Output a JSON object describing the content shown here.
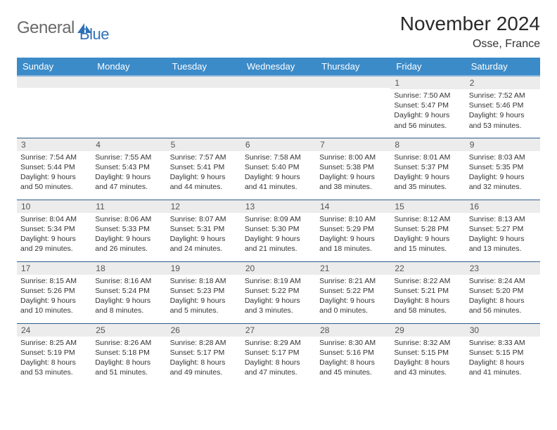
{
  "brand": {
    "word1": "General",
    "word2": "Blue"
  },
  "title": "November 2024",
  "location": "Osse, France",
  "colors": {
    "header_bg": "#3b8bc9",
    "header_underline": "#8fb9db",
    "row_border": "#2f5d8a",
    "daynum_bg": "#ececec",
    "text": "#333333",
    "logo_gray": "#6a6a6a",
    "logo_blue": "#2f71b8",
    "background": "#ffffff"
  },
  "typography": {
    "title_fontsize": 28,
    "location_fontsize": 16,
    "header_fontsize": 13,
    "daynum_fontsize": 12,
    "body_fontsize": 10.5
  },
  "day_headers": [
    "Sunday",
    "Monday",
    "Tuesday",
    "Wednesday",
    "Thursday",
    "Friday",
    "Saturday"
  ],
  "weeks": [
    [
      {
        "n": "",
        "sr": "",
        "ss": "",
        "dl": ""
      },
      {
        "n": "",
        "sr": "",
        "ss": "",
        "dl": ""
      },
      {
        "n": "",
        "sr": "",
        "ss": "",
        "dl": ""
      },
      {
        "n": "",
        "sr": "",
        "ss": "",
        "dl": ""
      },
      {
        "n": "",
        "sr": "",
        "ss": "",
        "dl": ""
      },
      {
        "n": "1",
        "sr": "Sunrise: 7:50 AM",
        "ss": "Sunset: 5:47 PM",
        "dl": "Daylight: 9 hours and 56 minutes."
      },
      {
        "n": "2",
        "sr": "Sunrise: 7:52 AM",
        "ss": "Sunset: 5:46 PM",
        "dl": "Daylight: 9 hours and 53 minutes."
      }
    ],
    [
      {
        "n": "3",
        "sr": "Sunrise: 7:54 AM",
        "ss": "Sunset: 5:44 PM",
        "dl": "Daylight: 9 hours and 50 minutes."
      },
      {
        "n": "4",
        "sr": "Sunrise: 7:55 AM",
        "ss": "Sunset: 5:43 PM",
        "dl": "Daylight: 9 hours and 47 minutes."
      },
      {
        "n": "5",
        "sr": "Sunrise: 7:57 AM",
        "ss": "Sunset: 5:41 PM",
        "dl": "Daylight: 9 hours and 44 minutes."
      },
      {
        "n": "6",
        "sr": "Sunrise: 7:58 AM",
        "ss": "Sunset: 5:40 PM",
        "dl": "Daylight: 9 hours and 41 minutes."
      },
      {
        "n": "7",
        "sr": "Sunrise: 8:00 AM",
        "ss": "Sunset: 5:38 PM",
        "dl": "Daylight: 9 hours and 38 minutes."
      },
      {
        "n": "8",
        "sr": "Sunrise: 8:01 AM",
        "ss": "Sunset: 5:37 PM",
        "dl": "Daylight: 9 hours and 35 minutes."
      },
      {
        "n": "9",
        "sr": "Sunrise: 8:03 AM",
        "ss": "Sunset: 5:35 PM",
        "dl": "Daylight: 9 hours and 32 minutes."
      }
    ],
    [
      {
        "n": "10",
        "sr": "Sunrise: 8:04 AM",
        "ss": "Sunset: 5:34 PM",
        "dl": "Daylight: 9 hours and 29 minutes."
      },
      {
        "n": "11",
        "sr": "Sunrise: 8:06 AM",
        "ss": "Sunset: 5:33 PM",
        "dl": "Daylight: 9 hours and 26 minutes."
      },
      {
        "n": "12",
        "sr": "Sunrise: 8:07 AM",
        "ss": "Sunset: 5:31 PM",
        "dl": "Daylight: 9 hours and 24 minutes."
      },
      {
        "n": "13",
        "sr": "Sunrise: 8:09 AM",
        "ss": "Sunset: 5:30 PM",
        "dl": "Daylight: 9 hours and 21 minutes."
      },
      {
        "n": "14",
        "sr": "Sunrise: 8:10 AM",
        "ss": "Sunset: 5:29 PM",
        "dl": "Daylight: 9 hours and 18 minutes."
      },
      {
        "n": "15",
        "sr": "Sunrise: 8:12 AM",
        "ss": "Sunset: 5:28 PM",
        "dl": "Daylight: 9 hours and 15 minutes."
      },
      {
        "n": "16",
        "sr": "Sunrise: 8:13 AM",
        "ss": "Sunset: 5:27 PM",
        "dl": "Daylight: 9 hours and 13 minutes."
      }
    ],
    [
      {
        "n": "17",
        "sr": "Sunrise: 8:15 AM",
        "ss": "Sunset: 5:26 PM",
        "dl": "Daylight: 9 hours and 10 minutes."
      },
      {
        "n": "18",
        "sr": "Sunrise: 8:16 AM",
        "ss": "Sunset: 5:24 PM",
        "dl": "Daylight: 9 hours and 8 minutes."
      },
      {
        "n": "19",
        "sr": "Sunrise: 8:18 AM",
        "ss": "Sunset: 5:23 PM",
        "dl": "Daylight: 9 hours and 5 minutes."
      },
      {
        "n": "20",
        "sr": "Sunrise: 8:19 AM",
        "ss": "Sunset: 5:22 PM",
        "dl": "Daylight: 9 hours and 3 minutes."
      },
      {
        "n": "21",
        "sr": "Sunrise: 8:21 AM",
        "ss": "Sunset: 5:22 PM",
        "dl": "Daylight: 9 hours and 0 minutes."
      },
      {
        "n": "22",
        "sr": "Sunrise: 8:22 AM",
        "ss": "Sunset: 5:21 PM",
        "dl": "Daylight: 8 hours and 58 minutes."
      },
      {
        "n": "23",
        "sr": "Sunrise: 8:24 AM",
        "ss": "Sunset: 5:20 PM",
        "dl": "Daylight: 8 hours and 56 minutes."
      }
    ],
    [
      {
        "n": "24",
        "sr": "Sunrise: 8:25 AM",
        "ss": "Sunset: 5:19 PM",
        "dl": "Daylight: 8 hours and 53 minutes."
      },
      {
        "n": "25",
        "sr": "Sunrise: 8:26 AM",
        "ss": "Sunset: 5:18 PM",
        "dl": "Daylight: 8 hours and 51 minutes."
      },
      {
        "n": "26",
        "sr": "Sunrise: 8:28 AM",
        "ss": "Sunset: 5:17 PM",
        "dl": "Daylight: 8 hours and 49 minutes."
      },
      {
        "n": "27",
        "sr": "Sunrise: 8:29 AM",
        "ss": "Sunset: 5:17 PM",
        "dl": "Daylight: 8 hours and 47 minutes."
      },
      {
        "n": "28",
        "sr": "Sunrise: 8:30 AM",
        "ss": "Sunset: 5:16 PM",
        "dl": "Daylight: 8 hours and 45 minutes."
      },
      {
        "n": "29",
        "sr": "Sunrise: 8:32 AM",
        "ss": "Sunset: 5:15 PM",
        "dl": "Daylight: 8 hours and 43 minutes."
      },
      {
        "n": "30",
        "sr": "Sunrise: 8:33 AM",
        "ss": "Sunset: 5:15 PM",
        "dl": "Daylight: 8 hours and 41 minutes."
      }
    ]
  ]
}
